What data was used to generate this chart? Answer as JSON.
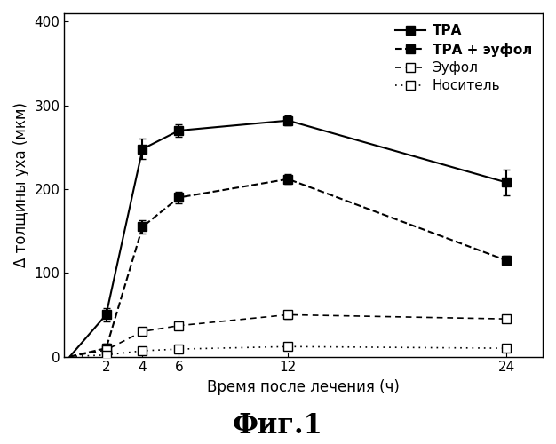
{
  "x": [
    0,
    2,
    4,
    6,
    12,
    24
  ],
  "series": [
    {
      "label": "ТРА",
      "y": [
        0,
        50,
        248,
        270,
        282,
        208
      ],
      "yerr": [
        0,
        8,
        12,
        7,
        6,
        15
      ],
      "color": "#000000",
      "linestyle": "-",
      "marker": "s",
      "markerfacecolor": "#000000",
      "markeredgecolor": "#000000",
      "linewidth": 1.5,
      "markersize": 7,
      "bold_legend": true
    },
    {
      "label": "ТРА + эуфол",
      "y": [
        0,
        10,
        155,
        190,
        212,
        115
      ],
      "yerr": [
        0,
        5,
        8,
        7,
        6,
        5
      ],
      "color": "#000000",
      "linestyle": "--",
      "marker": "s",
      "markerfacecolor": "#000000",
      "markeredgecolor": "#000000",
      "linewidth": 1.5,
      "markersize": 7,
      "bold_legend": true
    },
    {
      "label": "Эуфол",
      "y": [
        0,
        8,
        30,
        37,
        50,
        45
      ],
      "yerr": [
        0,
        3,
        4,
        4,
        5,
        4
      ],
      "color": "#000000",
      "linestyle": "--",
      "marker": "s",
      "markerfacecolor": "#ffffff",
      "markeredgecolor": "#000000",
      "linewidth": 1.2,
      "markersize": 7,
      "bold_legend": false
    },
    {
      "label": "Носитель",
      "y": [
        0,
        2,
        7,
        9,
        12,
        10
      ],
      "yerr": [
        0,
        1,
        2,
        2,
        2,
        2
      ],
      "color": "#000000",
      "linestyle": "dotted",
      "marker": "s",
      "markerfacecolor": "#ffffff",
      "markeredgecolor": "#000000",
      "linewidth": 1.2,
      "markersize": 7,
      "bold_legend": false
    }
  ],
  "xlabel": "Время после лечения (ч)",
  "ylabel": "Δ толщины уха (мкм)",
  "title": "Фиг.1",
  "xlim": [
    -0.3,
    26
  ],
  "ylim": [
    0,
    410
  ],
  "yticks": [
    0,
    100,
    200,
    300,
    400
  ],
  "xticks": [
    2,
    4,
    6,
    12,
    24
  ],
  "background_color": "#ffffff",
  "legend_fontsize": 11,
  "axis_fontsize": 12,
  "tick_fontsize": 11,
  "title_fontsize": 22
}
